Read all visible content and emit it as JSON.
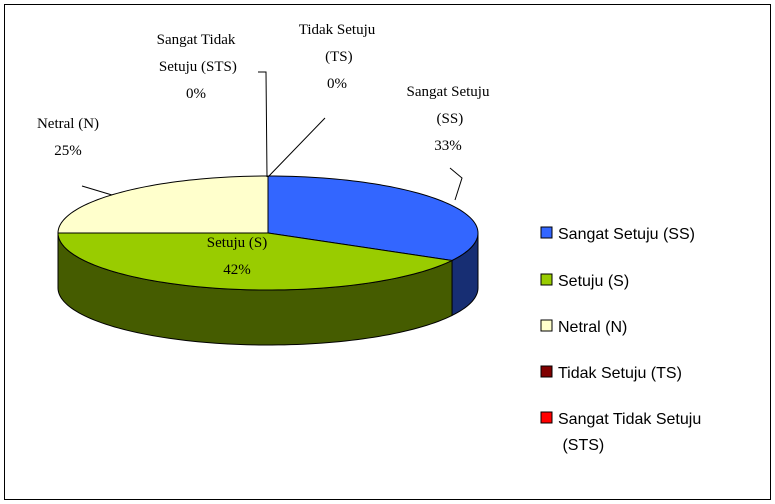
{
  "chart_data": {
    "type": "pie",
    "categories": [
      "Sangat Setuju (SS)",
      "Setuju (S)",
      "Netral (N)",
      "Tidak Setuju (TS)",
      "Sangat Tidak Setuju (STS)"
    ],
    "values": [
      33,
      42,
      25,
      0,
      0
    ],
    "value_labels": [
      "33%",
      "42%",
      "25%",
      "0%",
      "0%"
    ],
    "colors": [
      "#3366ff",
      "#99cc00",
      "#ffffcc",
      "#800000",
      "#ff0000"
    ],
    "legend": "right"
  }
}
